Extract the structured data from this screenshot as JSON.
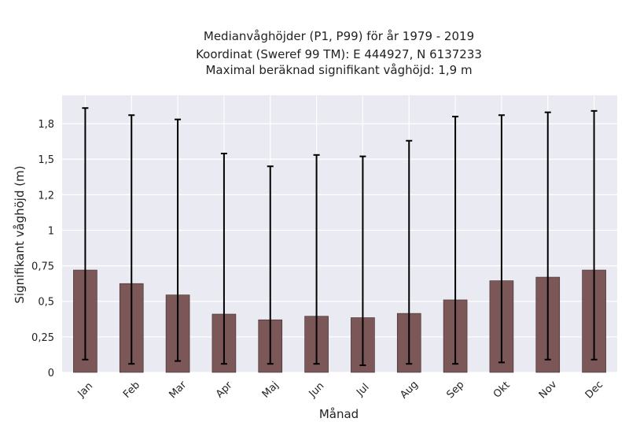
{
  "chart_data": {
    "type": "bar",
    "title_lines": [
      "Medianvåghöjder (P1, P99) för år 1979 - 2019",
      "Koordinat (Sweref 99 TM): E 444927, N 6137233",
      "Maximal beräknad signifikant våghöjd: 1,9 m"
    ],
    "xlabel": "Månad",
    "ylabel": "Signifikant våghöjd (m)",
    "categories": [
      "Jan",
      "Feb",
      "Mar",
      "Apr",
      "Maj",
      "Jun",
      "Jul",
      "Aug",
      "Sep",
      "Okt",
      "Nov",
      "Dec"
    ],
    "values": [
      0.72,
      0.625,
      0.545,
      0.41,
      0.37,
      0.395,
      0.385,
      0.415,
      0.51,
      0.645,
      0.67,
      0.72
    ],
    "p1": [
      0.09,
      0.06,
      0.08,
      0.06,
      0.06,
      0.06,
      0.05,
      0.06,
      0.06,
      0.07,
      0.09,
      0.09
    ],
    "p99": [
      1.86,
      1.81,
      1.78,
      1.54,
      1.45,
      1.53,
      1.52,
      1.63,
      1.8,
      1.81,
      1.83,
      1.84
    ],
    "ylim": [
      0,
      1.95
    ],
    "yticks": [
      0,
      0.25,
      0.5,
      0.75,
      1,
      1.25,
      1.5,
      1.75
    ],
    "ytick_labels": [
      "0",
      "0,25",
      "0,5",
      "0,75",
      "1",
      "1,2",
      "1,5",
      "1,8"
    ],
    "grid": true,
    "bar_color": "#7b5757",
    "plot_background": "#eaeaf2",
    "grid_color": "#ffffff",
    "error_bar_color": "#000000"
  }
}
